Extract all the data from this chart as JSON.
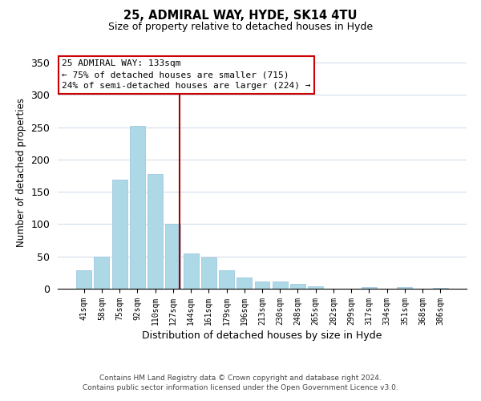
{
  "title": "25, ADMIRAL WAY, HYDE, SK14 4TU",
  "subtitle": "Size of property relative to detached houses in Hyde",
  "xlabel": "Distribution of detached houses by size in Hyde",
  "ylabel": "Number of detached properties",
  "bar_color": "#add8e6",
  "bar_edge_color": "#a0c8e0",
  "bin_labels": [
    "41sqm",
    "58sqm",
    "75sqm",
    "92sqm",
    "110sqm",
    "127sqm",
    "144sqm",
    "161sqm",
    "179sqm",
    "196sqm",
    "213sqm",
    "230sqm",
    "248sqm",
    "265sqm",
    "282sqm",
    "299sqm",
    "317sqm",
    "334sqm",
    "351sqm",
    "368sqm",
    "386sqm"
  ],
  "bar_heights": [
    29,
    50,
    169,
    252,
    178,
    101,
    55,
    48,
    29,
    17,
    11,
    11,
    7,
    4,
    0,
    0,
    3,
    0,
    2,
    0,
    1
  ],
  "vline_color": "#aa0000",
  "annotation_title": "25 ADMIRAL WAY: 133sqm",
  "annotation_line1": "← 75% of detached houses are smaller (715)",
  "annotation_line2": "24% of semi-detached houses are larger (224) →",
  "ylim": [
    0,
    360
  ],
  "yticks": [
    0,
    50,
    100,
    150,
    200,
    250,
    300,
    350
  ],
  "footer1": "Contains HM Land Registry data © Crown copyright and database right 2024.",
  "footer2": "Contains public sector information licensed under the Open Government Licence v3.0."
}
